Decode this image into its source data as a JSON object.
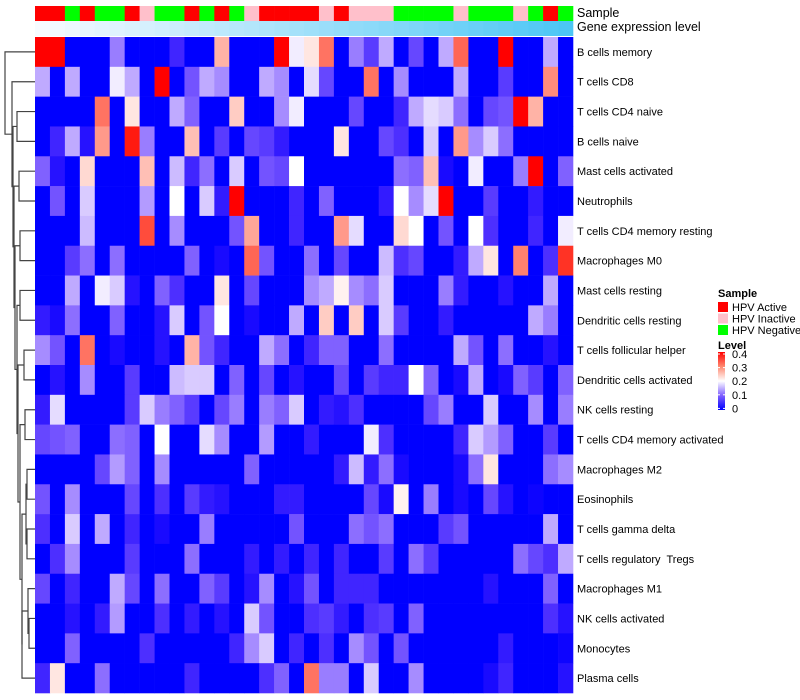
{
  "chart_data": {
    "type": "heatmap",
    "annotation_labels": {
      "sample": "Sample",
      "gene_expression": "Gene expression level"
    },
    "rows": [
      "B cells memory",
      "T cells CD8",
      "T cells CD4 naive",
      "B cells naive",
      "Mast cells activated",
      "Neutrophils",
      "T cells CD4 memory resting",
      "Macrophages M0",
      "Mast cells resting",
      "Dendritic cells resting",
      "T cells follicular helper",
      "Dendritic cells activated",
      "NK cells resting",
      "T cells CD4 memory activated",
      "Macrophages M2",
      "Eosinophils",
      "T cells gamma delta",
      "T cells regulatory  Tregs",
      "Macrophages M1",
      "NK cells activated",
      "Monocytes",
      "Plasma cells"
    ],
    "column_sample_groups": [
      "HPV Active",
      "HPV Active",
      "HPV Negative",
      "HPV Active",
      "HPV Negative",
      "HPV Negative",
      "HPV Active",
      "HPV Inactive",
      "HPV Negative",
      "HPV Negative",
      "HPV Active",
      "HPV Negative",
      "HPV Active",
      "HPV Negative",
      "HPV Inactive",
      "HPV Active",
      "HPV Active",
      "HPV Active",
      "HPV Active",
      "HPV Inactive",
      "HPV Active",
      "HPV Inactive",
      "HPV Inactive",
      "HPV Inactive",
      "HPV Negative",
      "HPV Negative",
      "HPV Negative",
      "HPV Negative",
      "HPV Inactive",
      "HPV Negative",
      "HPV Negative",
      "HPV Negative",
      "HPV Inactive",
      "HPV Negative",
      "HPV Active",
      "HPV Negative"
    ],
    "column_gene_expression_rank": [
      0,
      1,
      2,
      3,
      4,
      5,
      6,
      7,
      8,
      9,
      10,
      11,
      12,
      13,
      14,
      15,
      16,
      17,
      18,
      19,
      20,
      21,
      22,
      23,
      24,
      25,
      26,
      27,
      28,
      29,
      30,
      31,
      32,
      33,
      34,
      35
    ],
    "values": [
      [
        0.4,
        0.4,
        0,
        0,
        0,
        0.12,
        0,
        0,
        0,
        0.05,
        0,
        0,
        0.26,
        0,
        0,
        0,
        0.4,
        0.19,
        0.22,
        0.31,
        0,
        0.12,
        0.07,
        0.15,
        0,
        0.08,
        0,
        0.15,
        0.32,
        0,
        0,
        0.4,
        0,
        0,
        0.15,
        0
      ],
      [
        0.15,
        0,
        0.15,
        0,
        0,
        0.19,
        0.15,
        0,
        0.4,
        0,
        0.09,
        0.15,
        0.13,
        0,
        0,
        0.15,
        0.13,
        0,
        0.18,
        0.08,
        0,
        0,
        0.31,
        0,
        0.13,
        0,
        0,
        0,
        0.15,
        0,
        0,
        0.07,
        0,
        0,
        0.29,
        0
      ],
      [
        0,
        0,
        0,
        0,
        0.31,
        0,
        0.22,
        0,
        0,
        0.15,
        0.1,
        0,
        0,
        0.24,
        0,
        0,
        0.13,
        0.19,
        0,
        0,
        0,
        0.08,
        0,
        0,
        0.05,
        0.15,
        0.18,
        0.17,
        0.11,
        0,
        0.08,
        0.09,
        0.4,
        0.26,
        0,
        0
      ],
      [
        0,
        0.05,
        0.15,
        0.03,
        0.28,
        0,
        0.38,
        0.12,
        0,
        0,
        0.25,
        0,
        0.07,
        0,
        0.08,
        0.07,
        0.04,
        0,
        0,
        0,
        0.22,
        0,
        0,
        0.08,
        0.06,
        0,
        0.17,
        0,
        0.28,
        0.13,
        0.17,
        0.11,
        0,
        0,
        0,
        0
      ],
      [
        0.1,
        0.03,
        0,
        0.23,
        0,
        0,
        0,
        0.25,
        0,
        0.16,
        0.05,
        0.11,
        0,
        0.17,
        0,
        0.09,
        0.08,
        0.2,
        0,
        0,
        0,
        0,
        0,
        0,
        0.11,
        0.1,
        0.25,
        0.02,
        0,
        0.19,
        0,
        0,
        0.12,
        0.4,
        0,
        0.1
      ],
      [
        0,
        0.09,
        0,
        0.17,
        0,
        0,
        0,
        0.14,
        0,
        0.2,
        0,
        0.17,
        0.04,
        0.4,
        0,
        0,
        0,
        0.05,
        0,
        0.1,
        0,
        0,
        0,
        0.04,
        0.2,
        0.13,
        0.18,
        0.4,
        0,
        0,
        0.07,
        0,
        0,
        0.04,
        0,
        0
      ],
      [
        0,
        0,
        0,
        0.16,
        0,
        0,
        0,
        0.34,
        0,
        0.13,
        0,
        0,
        0,
        0.09,
        0.27,
        0,
        0,
        0.05,
        0,
        0,
        0.28,
        0.18,
        0,
        0,
        0.23,
        0.2,
        0,
        0.09,
        0,
        0.2,
        0.06,
        0,
        0,
        0.05,
        0,
        0.19
      ],
      [
        0,
        0,
        0.07,
        0.11,
        0,
        0.11,
        0,
        0,
        0,
        0,
        0.1,
        0,
        0.02,
        0,
        0.32,
        0.09,
        0,
        0,
        0.11,
        0,
        0.08,
        0,
        0,
        0.16,
        0.06,
        0.08,
        0,
        0,
        0.04,
        0.15,
        0.22,
        0,
        0.3,
        0,
        0.06,
        0.36
      ],
      [
        0,
        0,
        0.15,
        0,
        0.19,
        0.17,
        0.03,
        0,
        0.1,
        0.06,
        0,
        0,
        0.22,
        0,
        0.08,
        0,
        0,
        0,
        0.13,
        0.15,
        0.21,
        0.13,
        0.11,
        0.17,
        0,
        0,
        0,
        0.12,
        0.04,
        0,
        0,
        0.03,
        0,
        0,
        0.15,
        0
      ],
      [
        0.04,
        0.02,
        0.11,
        0,
        0,
        0.1,
        0,
        0,
        0.03,
        0.17,
        0,
        0.09,
        0.2,
        0,
        0.02,
        0,
        0,
        0.15,
        0,
        0.24,
        0,
        0.24,
        0,
        0.17,
        0.07,
        0,
        0,
        0.04,
        0,
        0,
        0,
        0,
        0,
        0.15,
        0.12,
        0
      ],
      [
        0.13,
        0.09,
        0,
        0.31,
        0,
        0.02,
        0,
        0,
        0.03,
        0,
        0.26,
        0.09,
        0.05,
        0,
        0,
        0.15,
        0.11,
        0,
        0.05,
        0.1,
        0.1,
        0,
        0,
        0.11,
        0,
        0,
        0,
        0,
        0.15,
        0.09,
        0,
        0.11,
        0,
        0,
        0.03,
        0
      ],
      [
        0,
        0.03,
        0,
        0.13,
        0,
        0,
        0.07,
        0,
        0,
        0.16,
        0.17,
        0.17,
        0,
        0.1,
        0,
        0.08,
        0,
        0.03,
        0,
        0,
        0.08,
        0,
        0.07,
        0.05,
        0.05,
        0.2,
        0.1,
        0,
        0.02,
        0.15,
        0,
        0.02,
        0.1,
        0.07,
        0,
        0.1
      ],
      [
        0.04,
        0.18,
        0,
        0,
        0,
        0,
        0.07,
        0.17,
        0.12,
        0.1,
        0.07,
        0,
        0.08,
        0.12,
        0,
        0.12,
        0.1,
        0.17,
        0,
        0.04,
        0.03,
        0.06,
        0,
        0,
        0,
        0,
        0.08,
        0.12,
        0,
        0,
        0.17,
        0,
        0,
        0.13,
        0,
        0.12
      ],
      [
        0.08,
        0.09,
        0.1,
        0,
        0,
        0.11,
        0.1,
        0,
        0.2,
        0,
        0,
        0.18,
        0.13,
        0,
        0,
        0.14,
        0,
        0,
        0.04,
        0,
        0,
        0,
        0.19,
        0.06,
        0,
        0,
        0,
        0,
        0.05,
        0.17,
        0.14,
        0.1,
        0,
        0,
        0.07,
        0
      ],
      [
        0,
        0,
        0,
        0,
        0.08,
        0.14,
        0.1,
        0,
        0.13,
        0,
        0,
        0,
        0,
        0,
        0.1,
        0,
        0,
        0,
        0,
        0,
        0.04,
        0.16,
        0.04,
        0.11,
        0.02,
        0,
        0,
        0,
        0.02,
        0.11,
        0.22,
        0,
        0,
        0,
        0.11,
        0.13
      ],
      [
        0.09,
        0,
        0.13,
        0,
        0,
        0,
        0.08,
        0,
        0.06,
        0,
        0.07,
        0.04,
        0.03,
        0,
        0,
        0,
        0.04,
        0.04,
        0,
        0,
        0,
        0,
        0.08,
        0.02,
        0.21,
        0,
        0.12,
        0,
        0.02,
        0,
        0.08,
        0.03,
        0,
        0.01,
        0,
        0
      ],
      [
        0.06,
        0,
        0.17,
        0,
        0.15,
        0,
        0.05,
        0,
        0.02,
        0,
        0,
        0.12,
        0,
        0,
        0,
        0,
        0,
        0.09,
        0,
        0,
        0,
        0.11,
        0.09,
        0.11,
        0,
        0,
        0,
        0.07,
        0.09,
        0,
        0,
        0,
        0,
        0,
        0.15,
        0
      ],
      [
        0,
        0.06,
        0.13,
        0,
        0,
        0,
        0.07,
        0,
        0,
        0,
        0.11,
        0,
        0,
        0,
        0.04,
        0,
        0.04,
        0,
        0.05,
        0,
        0.05,
        0,
        0,
        0.07,
        0,
        0.11,
        0.07,
        0,
        0,
        0,
        0,
        0,
        0.11,
        0.08,
        0.06,
        0.15
      ],
      [
        0.08,
        0,
        0.05,
        0,
        0,
        0.15,
        0.08,
        0,
        0.11,
        0,
        0,
        0.1,
        0.07,
        0,
        0.03,
        0.13,
        0,
        0.03,
        0.09,
        0,
        0.05,
        0.05,
        0.05,
        0,
        0,
        0,
        0,
        0,
        0,
        0,
        0.03,
        0,
        0,
        0,
        0.1,
        0
      ],
      [
        0,
        0,
        0.03,
        0,
        0.04,
        0.14,
        0,
        0,
        0.06,
        0,
        0.04,
        0,
        0.03,
        0,
        0.17,
        0.09,
        0,
        0,
        0.06,
        0.07,
        0.04,
        0,
        0.06,
        0.07,
        0,
        0.1,
        0,
        0,
        0,
        0,
        0,
        0,
        0,
        0,
        0.06,
        0.03
      ],
      [
        0,
        0,
        0.1,
        0,
        0,
        0,
        0,
        0.06,
        0,
        0,
        0,
        0,
        0,
        0.05,
        0.13,
        0.17,
        0,
        0.05,
        0,
        0.06,
        0,
        0.13,
        0.09,
        0,
        0.09,
        0,
        0,
        0,
        0,
        0,
        0,
        0.04,
        0,
        0,
        0,
        0.01
      ],
      [
        0.05,
        0.22,
        0,
        0,
        0.11,
        0,
        0,
        0,
        0,
        0,
        0.05,
        0,
        0,
        0,
        0,
        0.06,
        0.1,
        0,
        0.31,
        0.12,
        0.12,
        0,
        0.17,
        0,
        0,
        0.13,
        0,
        0,
        0,
        0,
        0.02,
        0.05,
        0,
        0,
        0,
        0.03
      ]
    ],
    "value_range": [
      0,
      0.4
    ],
    "legend": {
      "sample_title": "Sample",
      "sample_items": [
        {
          "label": "HPV Active",
          "color": "#ff0000"
        },
        {
          "label": "HPV Inactive",
          "color": "#ffc0cb"
        },
        {
          "label": "HPV Negative",
          "color": "#00ff00"
        }
      ],
      "level_title": "Level",
      "level_ticks": [
        "0.4",
        "0.3",
        "0.2",
        "0.1",
        "0"
      ],
      "level_colors": {
        "low": "#0000ff",
        "mid": "#ffffff",
        "high": "#ff0000"
      },
      "placement": "right"
    },
    "gene_expression_colors": {
      "low": "#f7fbff",
      "high": "#4cc6f5"
    },
    "row_dendrogram": true
  }
}
